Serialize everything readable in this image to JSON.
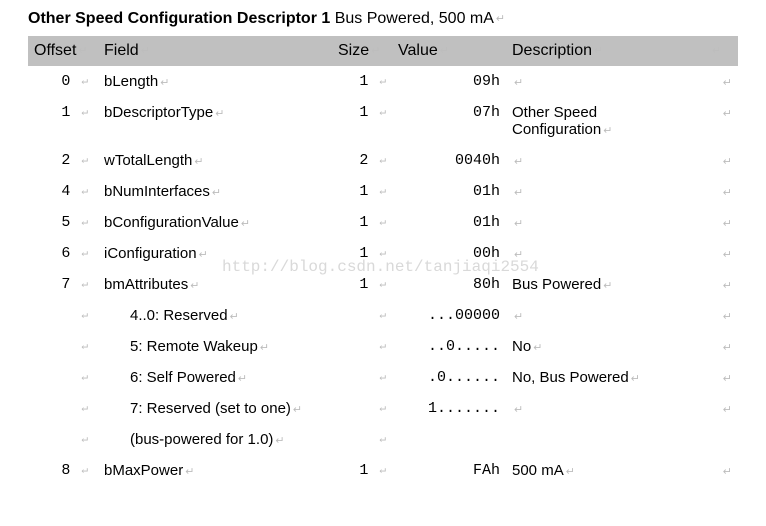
{
  "title": {
    "bold": "Other Speed Configuration Descriptor 1",
    "rest": "Bus Powered, 500 mA"
  },
  "columns": {
    "offset": "Offset",
    "field": "Field",
    "size": "Size",
    "value": "Value",
    "description": "Description"
  },
  "glyph": "↵",
  "watermark": "http://blog.csdn.net/tanjiaqi2554",
  "rows": [
    {
      "offset": "0",
      "field": "bLength",
      "indent": false,
      "size": "1",
      "value": "09h",
      "desc": ""
    },
    {
      "offset": "1",
      "field": "bDescriptorType",
      "indent": false,
      "size": "1",
      "value": "07h",
      "desc": "Other Speed Configuration"
    },
    {
      "offset": "2",
      "field": "wTotalLength",
      "indent": false,
      "size": "2",
      "value": "0040h",
      "desc": ""
    },
    {
      "offset": "4",
      "field": "bNumInterfaces",
      "indent": false,
      "size": "1",
      "value": "01h",
      "desc": ""
    },
    {
      "offset": "5",
      "field": "bConfigurationValue",
      "indent": false,
      "size": "1",
      "value": "01h",
      "desc": ""
    },
    {
      "offset": "6",
      "field": "iConfiguration",
      "indent": false,
      "size": "1",
      "value": "00h",
      "desc": ""
    },
    {
      "offset": "7",
      "field": "bmAttributes",
      "indent": false,
      "size": "1",
      "value": "80h",
      "desc": "Bus Powered"
    },
    {
      "offset": "",
      "field": "4..0: Reserved",
      "indent": true,
      "size": "",
      "value": "...00000",
      "desc": ""
    },
    {
      "offset": "",
      "field": "5: Remote Wakeup",
      "indent": true,
      "size": "",
      "value": "..0.....",
      "desc": "No"
    },
    {
      "offset": "",
      "field": "6: Self Powered",
      "indent": true,
      "size": "",
      "value": ".0......",
      "desc": "No, Bus Powered"
    },
    {
      "offset": "",
      "field": "7: Reserved (set to one)",
      "indent": true,
      "size": "",
      "value": "1.......",
      "desc": ""
    },
    {
      "offset": "",
      "field": "(bus-powered for 1.0)",
      "indent": true,
      "size": "",
      "value": "",
      "desc": "",
      "noTail": true
    },
    {
      "offset": "8",
      "field": "bMaxPower",
      "indent": false,
      "size": "1",
      "value": "FAh",
      "desc": "500 mA"
    }
  ]
}
